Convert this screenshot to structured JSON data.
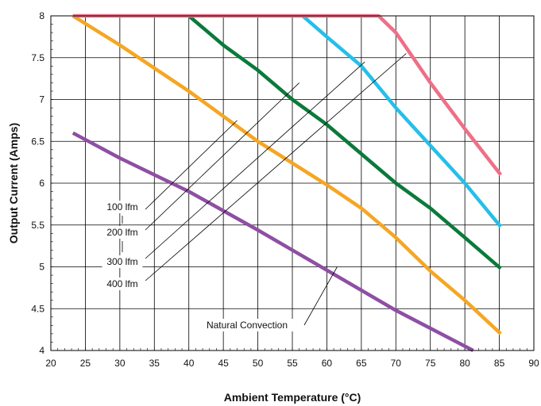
{
  "chart_data": {
    "type": "line",
    "title": "",
    "xlabel": "Ambient Temperature (°C)",
    "ylabel": "Output Current (Amps)",
    "xlim": [
      20,
      90
    ],
    "ylim": [
      4,
      8
    ],
    "xticks": [
      20,
      25,
      30,
      35,
      40,
      45,
      50,
      55,
      60,
      65,
      70,
      75,
      80,
      85,
      90
    ],
    "yticks": [
      4,
      4.5,
      5,
      5.5,
      6,
      6.5,
      7,
      7.5,
      8
    ],
    "ytick_labels": [
      "4",
      "4.5",
      "5",
      "5.5",
      "6",
      "6.5",
      "7",
      "7.5",
      "8"
    ],
    "grid": true,
    "legend": "none",
    "series": [
      {
        "name": "Natural Convection",
        "color": "#8e4fa3",
        "x": [
          23.2,
          30,
          40,
          50,
          60,
          70,
          81.2
        ],
        "y": [
          6.6,
          6.3,
          5.9,
          5.44,
          4.96,
          4.48,
          4.0
        ]
      },
      {
        "name": "100 lfm",
        "color": "#f5a623",
        "x": [
          23.2,
          30,
          40,
          50,
          60,
          65,
          70,
          75,
          80,
          85.2
        ],
        "y": [
          8.0,
          7.65,
          7.1,
          6.5,
          5.98,
          5.7,
          5.35,
          4.95,
          4.6,
          4.2
        ]
      },
      {
        "name": "200 lfm",
        "color": "#0a7a3a",
        "x": [
          40,
          45,
          50,
          55,
          60,
          65,
          70,
          75,
          80,
          85.2
        ],
        "y": [
          8.0,
          7.65,
          7.35,
          7.0,
          6.7,
          6.35,
          6.0,
          5.7,
          5.35,
          4.98
        ]
      },
      {
        "name": "300 lfm",
        "color": "#25bfe8",
        "x": [
          56.5,
          60,
          65,
          70,
          75,
          80,
          85.2
        ],
        "y": [
          8.0,
          7.75,
          7.4,
          6.9,
          6.45,
          6.0,
          5.48
        ]
      },
      {
        "name": "400 lfm",
        "color": "#ee6f86",
        "x": [
          23.2,
          67.5,
          70,
          75,
          80,
          85.2
        ],
        "y": [
          8.0,
          8.0,
          7.8,
          7.2,
          6.65,
          6.1
        ]
      }
    ],
    "annotations": [
      {
        "text": "100 lfm",
        "target_x": 47,
        "target_y": 6.75
      },
      {
        "text": "200 lfm",
        "target_x": 56,
        "target_y": 7.2
      },
      {
        "text": "300 lfm",
        "target_x": 65.5,
        "target_y": 7.45
      },
      {
        "text": "400 lfm",
        "target_x": 71.5,
        "target_y": 7.55
      },
      {
        "text": "Natural Convection",
        "target_x": 61.5,
        "target_y": 5.0
      }
    ]
  }
}
